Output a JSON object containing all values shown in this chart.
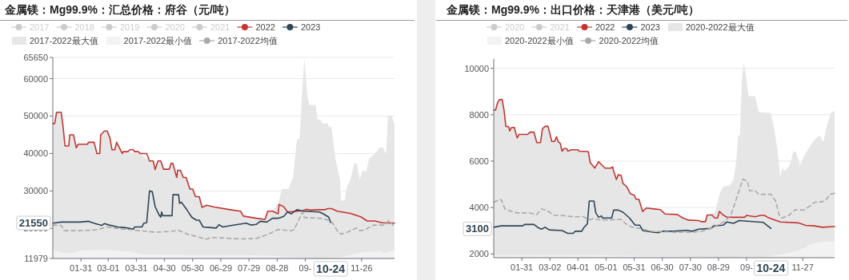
{
  "chart_data": [
    {
      "type": "line",
      "title": "金属镁：Mg99.9%：汇总价格：府谷（元/吨）",
      "legend": "top left",
      "grid": "y",
      "xlim": [
        "--01-01",
        "--12-31"
      ],
      "ylim": [
        11979,
        65650
      ],
      "xticks": [
        {
          "value": "--01-31",
          "label": "01-31"
        },
        {
          "value": "--03-01",
          "label": "03-01"
        },
        {
          "value": "--03-31",
          "label": "03-31"
        },
        {
          "value": "--04-30",
          "label": "04-30"
        },
        {
          "value": "--05-30",
          "label": "05-30"
        },
        {
          "value": "--06-29",
          "label": "06-29"
        },
        {
          "value": "--07-29",
          "label": "07-29"
        },
        {
          "value": "--08-28",
          "label": "08-28"
        },
        {
          "value": "--09-27",
          "label": "09-"
        },
        {
          "value": "--11-26",
          "label": "11-26"
        }
      ],
      "yticks": [
        11979,
        20000,
        30000,
        40000,
        50000,
        60000,
        65650
      ],
      "annotations": [
        {
          "text": "21550",
          "y": 21550
        },
        "10-24"
      ],
      "series": [
        {
          "name": "2017",
          "color": "#cccccc"
        },
        {
          "name": "2018",
          "color": "#cccccc"
        },
        {
          "name": "2019",
          "color": "#cccccc"
        },
        {
          "name": "2020",
          "color": "#cccccc"
        },
        {
          "name": "2021",
          "color": "#cccccc"
        },
        {
          "name": "2022",
          "type": "line",
          "color": "#c23531",
          "x": [
            "--01-01",
            "--01-03",
            "--01-05",
            "--01-10",
            "--01-12",
            "--01-14",
            "--01-18",
            "--01-19",
            "--01-23",
            "--01-26",
            "--01-28",
            "--02-07",
            "--02-08",
            "--02-14",
            "--02-17",
            "--02-20",
            "--02-21",
            "--02-25",
            "--02-28",
            "--03-03",
            "--03-05",
            "--03-08",
            "--03-10",
            "--03-12",
            "--03-16",
            "--03-17",
            "--03-22",
            "--03-24",
            "--03-28",
            "--03-29",
            "--04-02",
            "--04-04",
            "--04-11",
            "--04-14",
            "--04-18",
            "--04-20",
            "--04-23",
            "--04-26",
            "--04-29",
            "--05-05",
            "--05-07",
            "--05-09",
            "--05-13",
            "--05-14",
            "--05-17",
            "--05-20",
            "--05-23",
            "--05-27",
            "--05-30",
            "--06-02",
            "--06-06",
            "--06-09",
            "--06-14",
            "--06-22",
            "--07-09",
            "--07-20",
            "--07-23",
            "--08-06",
            "--08-15",
            "--08-18",
            "--08-23",
            "--08-29",
            "--08-30",
            "--09-04",
            "--09-08",
            "--09-24",
            "--09-28",
            "--10-02",
            "--10-11",
            "--10-18",
            "--10-21",
            "--10-25",
            "--10-31",
            "--11-14",
            "--11-25",
            "--12-02",
            "--12-10",
            "--12-18",
            "--12-31"
          ],
          "values": [
            48000,
            48000,
            51000,
            51000,
            47000,
            42000,
            42000,
            45000,
            45000,
            41500,
            42500,
            42500,
            43000,
            43000,
            40000,
            40000,
            45000,
            46000,
            46000,
            44000,
            41000,
            41000,
            43000,
            42000,
            40000,
            40500,
            40500,
            41000,
            41000,
            40500,
            40500,
            40000,
            40000,
            38000,
            38000,
            35700,
            38000,
            38000,
            35800,
            35800,
            37400,
            37300,
            33600,
            35500,
            35500,
            33600,
            33600,
            30500,
            30500,
            28500,
            28500,
            25600,
            26200,
            25700,
            25000,
            24600,
            23300,
            22700,
            22400,
            24600,
            24600,
            23900,
            26400,
            25800,
            24400,
            24700,
            25100,
            24900,
            25000,
            25000,
            25300,
            25300,
            24600,
            24000,
            23100,
            22000,
            22000,
            21500,
            21400
          ]
        },
        {
          "name": "2023",
          "type": "line",
          "color": "#2f4554",
          "x": [
            "--01-01",
            "--01-10",
            "--01-30",
            "--02-08",
            "--02-15",
            "--02-22",
            "--02-25",
            "--03-02",
            "--03-11",
            "--03-19",
            "--03-28",
            "--03-29",
            "--04-06",
            "--04-08",
            "--04-11",
            "--04-14",
            "--04-17",
            "--04-20",
            "--04-24",
            "--04-26",
            "--04-27",
            "--04-28",
            "--05-08",
            "--05-09",
            "--05-15",
            "--05-16",
            "--05-18",
            "--05-24",
            "--05-29",
            "--06-03",
            "--06-06",
            "--06-10",
            "--06-19",
            "--06-24",
            "--06-27",
            "--07-01",
            "--07-11",
            "--07-26",
            "--07-31",
            "--08-06",
            "--08-10",
            "--08-17",
            "--08-23",
            "--08-29",
            "--09-04",
            "--09-08",
            "--09-12",
            "--09-18",
            "--09-25",
            "--10-12",
            "--10-16",
            "--10-22",
            "--10-24"
          ],
          "values": [
            21400,
            21700,
            21700,
            21900,
            21300,
            20800,
            21300,
            20900,
            20400,
            20200,
            19800,
            20400,
            20400,
            21400,
            21500,
            30000,
            29800,
            25800,
            23700,
            23000,
            24400,
            23400,
            23400,
            29000,
            29000,
            26700,
            27000,
            24900,
            23000,
            22200,
            22200,
            20400,
            20200,
            20100,
            21000,
            20400,
            20800,
            21400,
            20900,
            21100,
            21900,
            21700,
            22700,
            22700,
            23200,
            24400,
            23900,
            25000,
            24600,
            24400,
            23900,
            23000,
            21550
          ]
        },
        {
          "name": "2017-2022最大值",
          "type": "area",
          "color": "#e6e6e6",
          "x": [
            "--01-01",
            "--01-03",
            "--01-05",
            "--01-10",
            "--01-12",
            "--01-14",
            "--01-18",
            "--01-19",
            "--01-23",
            "--01-26",
            "--01-28",
            "--02-07",
            "--02-08",
            "--02-14",
            "--02-17",
            "--02-20",
            "--02-21",
            "--02-25",
            "--02-28",
            "--03-03",
            "--03-05",
            "--03-08",
            "--03-10",
            "--03-12",
            "--03-16",
            "--04-04",
            "--04-14",
            "--04-18",
            "--04-20",
            "--04-23",
            "--04-26",
            "--04-29",
            "--05-05",
            "--05-07",
            "--05-09",
            "--05-13",
            "--05-14",
            "--05-17",
            "--05-20",
            "--05-23",
            "--05-27",
            "--05-30",
            "--06-02",
            "--06-06",
            "--06-09",
            "--06-14",
            "--06-22",
            "--07-09",
            "--07-20",
            "--07-23",
            "--08-06",
            "--08-15",
            "--08-18",
            "--08-23",
            "--08-29",
            "--09-02",
            "--09-09",
            "--09-14",
            "--09-18",
            "--09-21",
            "--09-24",
            "--09-26",
            "--09-29",
            "--10-01",
            "--10-08",
            "--10-10",
            "--10-13",
            "--10-15",
            "--10-21",
            "--10-22",
            "--10-25",
            "--10-29",
            "--11-03",
            "--11-04",
            "--11-08",
            "--11-10",
            "--11-14",
            "--11-18",
            "--11-21",
            "--11-24",
            "--11-27",
            "--12-01",
            "--12-04",
            "--12-09",
            "--12-15",
            "--12-19",
            "--12-22",
            "--12-24",
            "--12-28",
            "--12-31"
          ],
          "values": [
            48000,
            48000,
            51000,
            51000,
            47000,
            42000,
            42000,
            45000,
            45000,
            41500,
            42500,
            42500,
            43000,
            43000,
            40000,
            40000,
            45000,
            46000,
            46000,
            44000,
            41000,
            41000,
            43000,
            42000,
            40500,
            40000,
            38000,
            38000,
            35700,
            38000,
            38000,
            35800,
            35800,
            37400,
            37300,
            33600,
            35500,
            35500,
            33600,
            33600,
            30500,
            30500,
            28500,
            28500,
            25600,
            26200,
            25700,
            25000,
            24600,
            23300,
            22700,
            22400,
            24600,
            24600,
            26500,
            30500,
            30500,
            33700,
            43700,
            44100,
            58000,
            65650,
            55900,
            53000,
            53000,
            49100,
            49100,
            48000,
            48000,
            47000,
            47000,
            38700,
            33000,
            27400,
            27400,
            30800,
            33000,
            37400,
            37300,
            33000,
            35500,
            35100,
            38700,
            39600,
            41600,
            41600,
            39800,
            50000,
            50000,
            48000
          ]
        },
        {
          "name": "2017-2022最小值",
          "type": "area",
          "color": "#f2f2f2",
          "x": [
            "--01-01",
            "--01-13",
            "--01-21",
            "--01-30",
            "--02-28",
            "--03-23",
            "--04-06",
            "--04-26",
            "--05-24",
            "--07-20",
            "--08-17",
            "--09-09",
            "--10-13",
            "--11-05",
            "--11-25",
            "--12-17",
            "--12-20",
            "--12-26",
            "--12-31"
          ],
          "values": [
            14300,
            13400,
            13400,
            14100,
            14200,
            13900,
            13000,
            13000,
            12900,
            12900,
            12800,
            12400,
            11979,
            12400,
            13600,
            14000,
            13300,
            14000,
            14300
          ]
        },
        {
          "name": "2017-2022均值",
          "type": "line",
          "line_style": "dashed",
          "color": "#aaaaaa",
          "x": [
            "--01-01",
            "--01-10",
            "--01-13",
            "--01-30",
            "--02-16",
            "--02-28",
            "--03-14",
            "--04-03",
            "--04-20",
            "--05-07",
            "--05-15",
            "--05-24",
            "--06-04",
            "--06-13",
            "--06-19",
            "--07-20",
            "--08-06",
            "--08-17",
            "--08-29",
            "--09-12",
            "--09-15",
            "--09-22",
            "--09-24",
            "--09-26",
            "--10-13",
            "--10-22",
            "--10-26",
            "--10-31",
            "--11-04",
            "--11-11",
            "--11-20",
            "--11-24",
            "--11-29",
            "--12-09",
            "--12-21",
            "--12-25",
            "--12-31"
          ],
          "values": [
            20900,
            20800,
            19400,
            19400,
            19600,
            20400,
            19900,
            19400,
            19000,
            19200,
            19500,
            18500,
            17800,
            17100,
            17600,
            17200,
            17300,
            18300,
            19700,
            19400,
            19700,
            23300,
            24400,
            22900,
            22700,
            22200,
            21500,
            19400,
            18500,
            19000,
            20100,
            19400,
            19600,
            20900,
            20900,
            22200,
            20400
          ]
        }
      ]
    },
    {
      "type": "line",
      "title": "金属镁：Mg99.9%：出口价格：天津港（美元/吨）",
      "legend": "top left",
      "grid": "y",
      "xlim": [
        "--01-01",
        "--12-31"
      ],
      "ylim": [
        1840,
        10400
      ],
      "xticks": [
        {
          "value": "--01-31",
          "label": "01-31"
        },
        {
          "value": "--03-02",
          "label": "03-02"
        },
        {
          "value": "--04-01",
          "label": "04-01"
        },
        {
          "value": "--05-01",
          "label": "05-01"
        },
        {
          "value": "--05-31",
          "label": "05-31"
        },
        {
          "value": "--06-30",
          "label": "06-30"
        },
        {
          "value": "--07-30",
          "label": "07-30"
        },
        {
          "value": "--08-29",
          "label": "08-29"
        },
        {
          "value": "--09-28",
          "label": "09-"
        },
        {
          "value": "--11-27",
          "label": "11-27"
        }
      ],
      "yticks": [
        2000,
        4000,
        6000,
        8000,
        10000
      ],
      "annotations": [
        {
          "text": "3100",
          "y": 3100
        },
        {
          "text": "10-24",
          "x": "--10-24",
          "y": 3100
        }
      ],
      "series": [
        {
          "name": "2020",
          "color": "#cccccc"
        },
        {
          "name": "2021",
          "color": "#cccccc"
        },
        {
          "name": "2022",
          "type": "line",
          "color": "#c23531",
          "x": [
            "--01-01",
            "--01-03",
            "--01-05",
            "--01-07",
            "--01-10",
            "--01-12",
            "--01-14",
            "--01-17",
            "--01-18",
            "--01-20",
            "--01-23",
            "--01-26",
            "--01-28",
            "--02-06",
            "--02-09",
            "--02-13",
            "--02-16",
            "--02-20",
            "--02-22",
            "--02-25",
            "--02-28",
            "--03-04",
            "--03-07",
            "--03-09",
            "--03-11",
            "--03-13",
            "--03-15",
            "--03-17",
            "--03-20",
            "--03-21",
            "--03-25",
            "--04-01",
            "--04-02",
            "--04-12",
            "--04-14",
            "--04-19",
            "--04-23",
            "--04-27",
            "--04-30",
            "--05-06",
            "--05-08",
            "--05-09",
            "--05-12",
            "--05-14",
            "--05-17",
            "--05-19",
            "--05-23",
            "--05-27",
            "--05-31",
            "--06-02",
            "--06-05",
            "--06-09",
            "--06-13",
            "--06-21",
            "--06-28",
            "--07-03",
            "--07-16",
            "--07-22",
            "--07-28",
            "--08-08",
            "--08-11",
            "--08-15",
            "--08-17",
            "--08-22",
            "--08-25",
            "--08-28",
            "--08-30",
            "--09-03",
            "--09-07",
            "--09-26",
            "--09-28",
            "--10-07",
            "--10-13",
            "--10-17",
            "--10-21",
            "--11-03",
            "--11-22",
            "--11-30",
            "--12-09",
            "--12-18",
            "--12-31"
          ],
          "values": [
            8200,
            8200,
            8500,
            8650,
            8650,
            8200,
            7500,
            7480,
            7300,
            7450,
            7450,
            7000,
            7150,
            7150,
            7250,
            7250,
            6800,
            6800,
            7400,
            7500,
            7500,
            6850,
            6850,
            7050,
            6830,
            6770,
            6430,
            6540,
            6540,
            6430,
            6490,
            6490,
            6430,
            6410,
            5940,
            5700,
            5980,
            5810,
            5700,
            5700,
            5750,
            5580,
            5210,
            5410,
            5390,
            5040,
            4900,
            4590,
            4540,
            4360,
            4360,
            3830,
            3980,
            3940,
            3910,
            3720,
            3700,
            3550,
            3460,
            3440,
            3390,
            3390,
            3680,
            3680,
            3550,
            3550,
            3830,
            3680,
            3580,
            3580,
            3660,
            3600,
            3660,
            3660,
            3570,
            3380,
            3340,
            3230,
            3210,
            3150,
            3180
          ]
        },
        {
          "name": "2023",
          "type": "line",
          "color": "#2f4554",
          "x": [
            "--01-01",
            "--01-09",
            "--02-01",
            "--02-03",
            "--02-13",
            "--02-18",
            "--02-21",
            "--02-25",
            "--03-01",
            "--03-15",
            "--03-21",
            "--03-27",
            "--03-29",
            "--04-05",
            "--04-07",
            "--04-11",
            "--04-13",
            "--04-18",
            "--04-20",
            "--04-23",
            "--04-26",
            "--04-27",
            "--05-07",
            "--05-09",
            "--05-14",
            "--05-19",
            "--05-26",
            "--06-01",
            "--06-06",
            "--06-09",
            "--06-21",
            "--06-26",
            "--07-01",
            "--07-12",
            "--07-26",
            "--08-01",
            "--08-08",
            "--08-21",
            "--08-24",
            "--09-03",
            "--09-07",
            "--09-14",
            "--09-20",
            "--10-16",
            "--10-20",
            "--10-24"
          ],
          "values": [
            3150,
            3210,
            3210,
            3270,
            3270,
            3120,
            3070,
            3150,
            3040,
            3010,
            2890,
            2890,
            2980,
            2980,
            3120,
            3300,
            4280,
            4280,
            3770,
            3580,
            3640,
            3550,
            3550,
            3890,
            3890,
            3800,
            3550,
            3240,
            3240,
            3010,
            2930,
            2920,
            2980,
            2980,
            3020,
            2980,
            3070,
            3100,
            3210,
            3240,
            3380,
            3320,
            3440,
            3360,
            3230,
            3100
          ]
        },
        {
          "name": "2020-2022最大值",
          "type": "area",
          "color": "#e6e6e6",
          "x": [
            "--01-01",
            "--01-03",
            "--01-05",
            "--01-07",
            "--01-10",
            "--01-12",
            "--01-14",
            "--01-17",
            "--01-18",
            "--01-20",
            "--01-23",
            "--01-26",
            "--01-28",
            "--02-06",
            "--02-09",
            "--02-13",
            "--02-16",
            "--02-20",
            "--02-22",
            "--02-25",
            "--02-28",
            "--03-04",
            "--03-07",
            "--03-09",
            "--03-11",
            "--03-13",
            "--03-15",
            "--03-17",
            "--03-20",
            "--03-21",
            "--03-25",
            "--04-01",
            "--04-02",
            "--04-12",
            "--04-14",
            "--04-19",
            "--04-23",
            "--04-27",
            "--04-30",
            "--05-06",
            "--05-08",
            "--05-09",
            "--05-12",
            "--05-14",
            "--05-17",
            "--05-19",
            "--05-23",
            "--05-27",
            "--05-31",
            "--06-02",
            "--06-05",
            "--06-09",
            "--06-13",
            "--06-21",
            "--06-28",
            "--07-03",
            "--07-16",
            "--07-22",
            "--07-28",
            "--08-08",
            "--08-11",
            "--08-15",
            "--08-17",
            "--08-25",
            "--08-31",
            "--09-03",
            "--09-10",
            "--09-14",
            "--09-17",
            "--09-19",
            "--09-21",
            "--09-23",
            "--09-25",
            "--09-27",
            "--09-30",
            "--10-07",
            "--10-11",
            "--10-24",
            "--10-27",
            "--10-31",
            "--11-03",
            "--11-05",
            "--11-08",
            "--11-13",
            "--11-17",
            "--11-20",
            "--11-24",
            "--11-28",
            "--12-03",
            "--12-10",
            "--12-15",
            "--12-19",
            "--12-23",
            "--12-27",
            "--12-31"
          ],
          "values": [
            8200,
            8200,
            8500,
            8650,
            8650,
            8200,
            7500,
            7480,
            7300,
            7450,
            7450,
            7000,
            7150,
            7150,
            7250,
            7250,
            6800,
            6800,
            7400,
            7500,
            7500,
            6850,
            6850,
            7050,
            6830,
            6770,
            6430,
            6540,
            6540,
            6430,
            6490,
            6490,
            6430,
            6410,
            5940,
            5700,
            5980,
            5810,
            5700,
            5700,
            5750,
            5580,
            5210,
            5410,
            5390,
            5040,
            4900,
            4590,
            4540,
            4360,
            4360,
            3830,
            3980,
            3940,
            3910,
            3720,
            3700,
            3550,
            3460,
            3440,
            3390,
            3390,
            3680,
            3770,
            4680,
            4900,
            4960,
            5190,
            6030,
            7110,
            7110,
            9480,
            10230,
            9760,
            8800,
            8800,
            8120,
            8070,
            7500,
            6490,
            5300,
            5700,
            5580,
            5810,
            6430,
            6370,
            5810,
            6170,
            6540,
            6940,
            7110,
            6820,
            7560,
            8070,
            8180
          ]
        },
        {
          "name": "2020-2022最小值",
          "type": "area",
          "color": "#f2f2f2",
          "x": [
            "--01-01",
            "--04-11",
            "--06-30",
            "--09-08",
            "--10-18",
            "--11-07",
            "--11-22",
            "--12-09",
            "--12-20",
            "--12-31"
          ],
          "values": [
            1950,
            1950,
            1900,
            1850,
            1880,
            2000,
            2140,
            2470,
            2530,
            2530
          ]
        },
        {
          "name": "2020-2022均值",
          "type": "line",
          "line_style": "dashed",
          "color": "#aaaaaa",
          "x": [
            "--01-01",
            "--01-04",
            "--01-09",
            "--01-13",
            "--01-20",
            "--01-26",
            "--02-08",
            "--02-16",
            "--02-21",
            "--02-26",
            "--03-07",
            "--03-14",
            "--03-27",
            "--04-07",
            "--04-13",
            "--04-17",
            "--04-24",
            "--05-06",
            "--05-17",
            "--05-23",
            "--05-29",
            "--06-06",
            "--06-18",
            "--07-02",
            "--07-16",
            "--07-31",
            "--08-11",
            "--08-22",
            "--08-31",
            "--09-06",
            "--09-11",
            "--09-15",
            "--09-20",
            "--09-24",
            "--09-29",
            "--10-01",
            "--10-07",
            "--10-11",
            "--10-19",
            "--10-24",
            "--10-29",
            "--11-02",
            "--11-05",
            "--11-12",
            "--11-19",
            "--11-28",
            "--12-03",
            "--12-10",
            "--12-18",
            "--12-22",
            "--12-26",
            "--12-31"
          ],
          "values": [
            4230,
            4280,
            4340,
            3940,
            3830,
            3770,
            3770,
            3700,
            3940,
            3890,
            3660,
            3660,
            3600,
            3600,
            3470,
            3520,
            3470,
            3470,
            3490,
            3270,
            3150,
            3100,
            2980,
            2960,
            2930,
            2930,
            2980,
            3120,
            3300,
            3440,
            3660,
            4110,
            4730,
            5220,
            5130,
            4730,
            4730,
            4570,
            4570,
            4570,
            4280,
            3660,
            3550,
            3660,
            3910,
            3890,
            4020,
            4230,
            4250,
            4340,
            4570,
            4620
          ]
        }
      ]
    }
  ]
}
